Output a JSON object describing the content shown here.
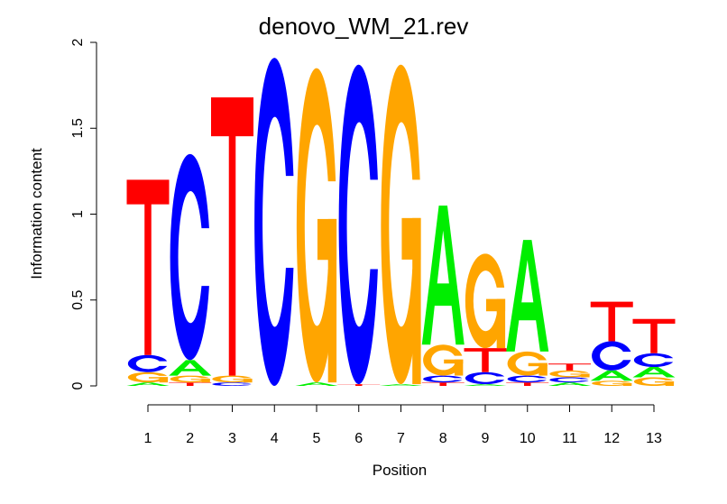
{
  "chart_data": {
    "type": "sequence-logo",
    "title": "denovo_WM_21.rev",
    "xlabel": "Position",
    "ylabel": "Information content",
    "ylim": [
      0,
      2
    ],
    "yticks": [
      "0",
      "0.5",
      "1",
      "1.5",
      "2"
    ],
    "positions": [
      "1",
      "2",
      "3",
      "4",
      "5",
      "6",
      "7",
      "8",
      "9",
      "10",
      "11",
      "12",
      "13"
    ],
    "colors": {
      "A": "#00ee00",
      "C": "#0000ff",
      "G": "#ffa500",
      "T": "#ff0000"
    },
    "stacks": [
      [
        {
          "letter": "A",
          "height": 0.02
        },
        {
          "letter": "G",
          "height": 0.06
        },
        {
          "letter": "C",
          "height": 0.1
        },
        {
          "letter": "T",
          "height": 1.02
        }
      ],
      [
        {
          "letter": "T",
          "height": 0.02
        },
        {
          "letter": "G",
          "height": 0.04
        },
        {
          "letter": "A",
          "height": 0.09
        },
        {
          "letter": "C",
          "height": 1.2
        }
      ],
      [
        {
          "letter": "C",
          "height": 0.02
        },
        {
          "letter": "G",
          "height": 0.04
        },
        {
          "letter": "T",
          "height": 1.62
        }
      ],
      [
        {
          "letter": "C",
          "height": 1.91
        }
      ],
      [
        {
          "letter": "A",
          "height": 0.02
        },
        {
          "letter": "G",
          "height": 1.83
        }
      ],
      [
        {
          "letter": "T",
          "height": 0.01
        },
        {
          "letter": "C",
          "height": 1.86
        }
      ],
      [
        {
          "letter": "A",
          "height": 0.01
        },
        {
          "letter": "G",
          "height": 1.86
        }
      ],
      [
        {
          "letter": "T",
          "height": 0.02
        },
        {
          "letter": "C",
          "height": 0.04
        },
        {
          "letter": "G",
          "height": 0.18
        },
        {
          "letter": "A",
          "height": 0.81
        }
      ],
      [
        {
          "letter": "A",
          "height": 0.01
        },
        {
          "letter": "C",
          "height": 0.07
        },
        {
          "letter": "T",
          "height": 0.14
        },
        {
          "letter": "G",
          "height": 0.55
        }
      ],
      [
        {
          "letter": "T",
          "height": 0.02
        },
        {
          "letter": "C",
          "height": 0.04
        },
        {
          "letter": "G",
          "height": 0.14
        },
        {
          "letter": "A",
          "height": 0.65
        }
      ],
      [
        {
          "letter": "A",
          "height": 0.02
        },
        {
          "letter": "C",
          "height": 0.03
        },
        {
          "letter": "G",
          "height": 0.04
        },
        {
          "letter": "T",
          "height": 0.04
        }
      ],
      [
        {
          "letter": "G",
          "height": 0.03
        },
        {
          "letter": "A",
          "height": 0.06
        },
        {
          "letter": "C",
          "height": 0.17
        },
        {
          "letter": "T",
          "height": 0.23
        }
      ],
      [
        {
          "letter": "G",
          "height": 0.05
        },
        {
          "letter": "A",
          "height": 0.06
        },
        {
          "letter": "C",
          "height": 0.08
        },
        {
          "letter": "T",
          "height": 0.2
        }
      ]
    ]
  }
}
